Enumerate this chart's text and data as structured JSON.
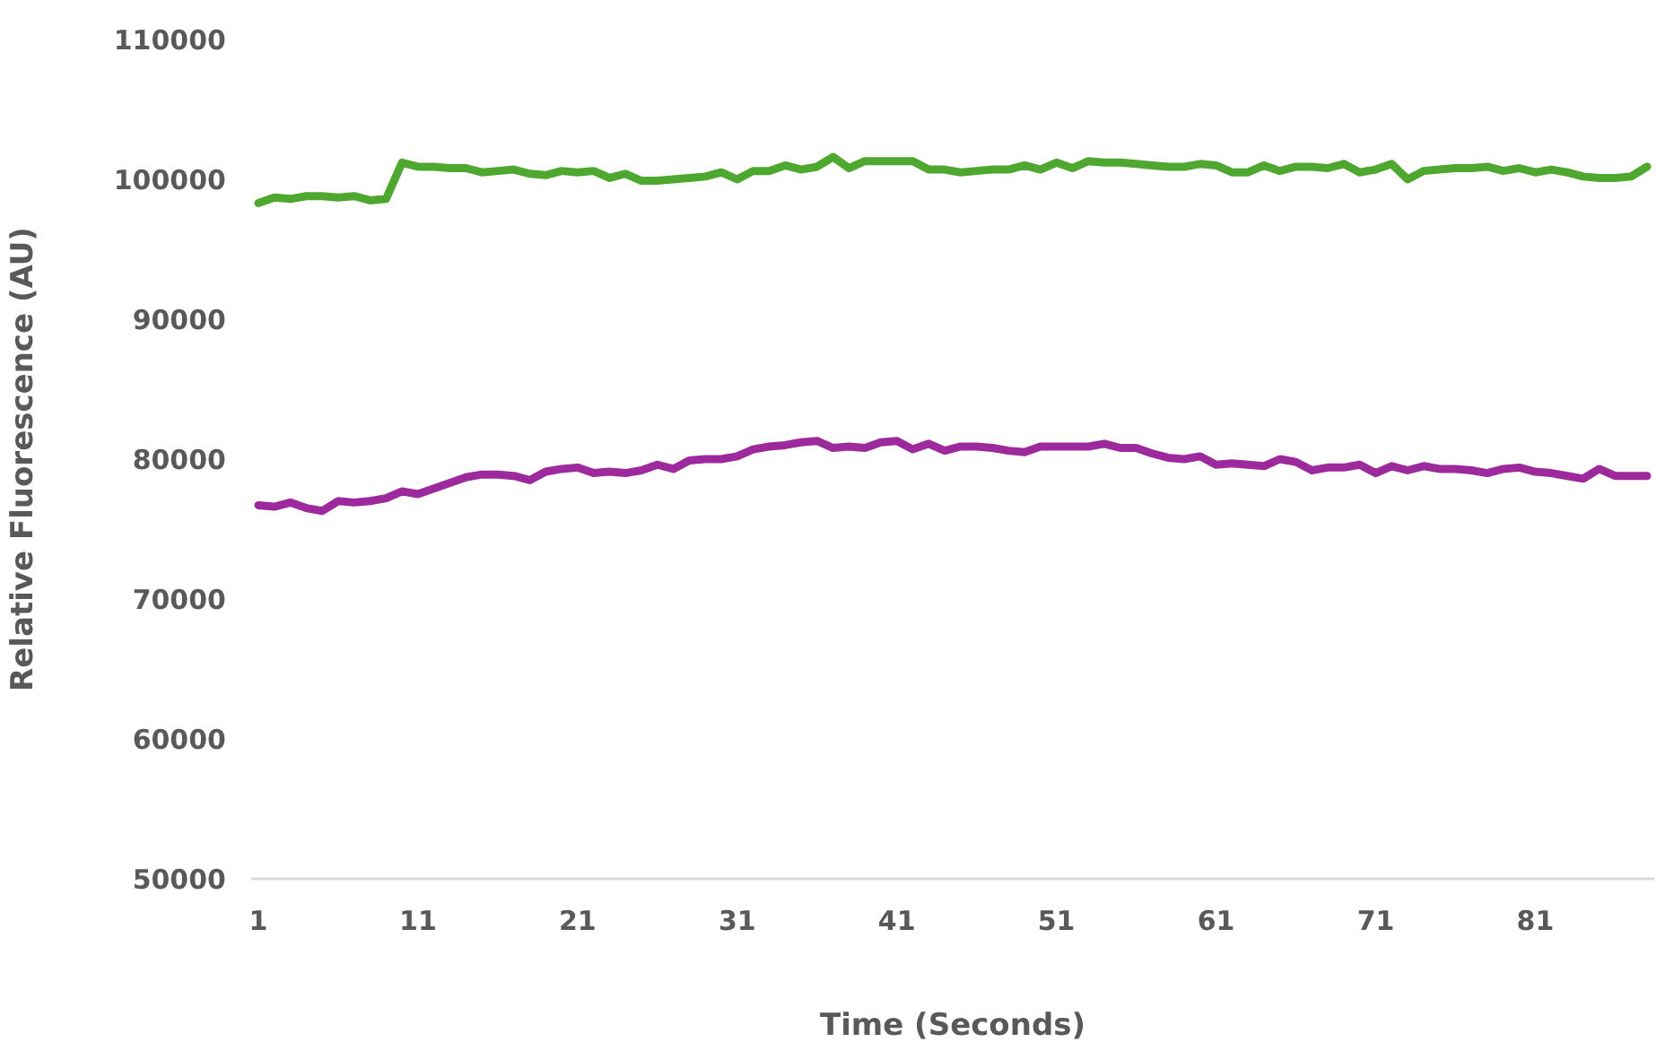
{
  "chart_data": {
    "type": "line",
    "xlabel": "Time (Seconds)",
    "ylabel": "Relative Fluorescence (AU)",
    "categories": [
      "1",
      null,
      null,
      null,
      null,
      null,
      null,
      null,
      null,
      null,
      "11",
      null,
      null,
      null,
      null,
      null,
      null,
      null,
      null,
      null,
      "21",
      null,
      null,
      null,
      null,
      null,
      null,
      null,
      null,
      null,
      "31",
      null,
      null,
      null,
      null,
      null,
      null,
      null,
      null,
      null,
      "41",
      null,
      null,
      null,
      null,
      null,
      null,
      null,
      null,
      null,
      "51",
      null,
      null,
      null,
      null,
      null,
      null,
      null,
      null,
      null,
      "61",
      null,
      null,
      null,
      null,
      null,
      null,
      null,
      null,
      null,
      "71",
      null,
      null,
      null,
      null,
      null,
      null,
      null,
      null,
      null,
      "81",
      null,
      null,
      null,
      null,
      null,
      null,
      null
    ],
    "ylim": [
      50000,
      110000
    ],
    "yticks": [
      50000,
      60000,
      70000,
      80000,
      90000,
      100000,
      110000
    ],
    "grid": false,
    "legend": false,
    "marker": "none",
    "line_style": "solid",
    "series": [
      {
        "color": "#4ea72e",
        "values": [
          98300,
          98700,
          98600,
          98800,
          98800,
          98700,
          98800,
          98500,
          98600,
          101200,
          100900,
          100900,
          100800,
          100800,
          100500,
          100600,
          100700,
          100400,
          100300,
          100600,
          100500,
          100600,
          100100,
          100400,
          99900,
          99900,
          100000,
          100100,
          100200,
          100500,
          100000,
          100600,
          100600,
          101000,
          100700,
          100900,
          101600,
          100800,
          101300,
          101300,
          101300,
          101300,
          100700,
          100700,
          100500,
          100600,
          100700,
          100700,
          101000,
          100700,
          101200,
          100800,
          101300,
          101200,
          101200,
          101100,
          101000,
          100900,
          100900,
          101100,
          101000,
          100500,
          100500,
          101000,
          100600,
          100900,
          100900,
          100800,
          101100,
          100500,
          100700,
          101100,
          100000,
          100600,
          100700,
          100800,
          100800,
          100900,
          100600,
          100800,
          100500,
          100700,
          100500,
          100200,
          100100,
          100100,
          100200,
          100900
        ]
      },
      {
        "color": "#9c2a9c",
        "values": [
          76700,
          76600,
          76900,
          76500,
          76300,
          77000,
          76900,
          77000,
          77200,
          77700,
          77500,
          77900,
          78300,
          78700,
          78900,
          78900,
          78800,
          78500,
          79100,
          79300,
          79400,
          79000,
          79100,
          79000,
          79200,
          79600,
          79300,
          79900,
          80000,
          80000,
          80200,
          80700,
          80900,
          81000,
          81200,
          81300,
          80800,
          80900,
          80800,
          81200,
          81300,
          80700,
          81100,
          80600,
          80900,
          80900,
          80800,
          80600,
          80500,
          80900,
          80900,
          80900,
          80900,
          81100,
          80800,
          80800,
          80400,
          80100,
          80000,
          80200,
          79600,
          79700,
          79600,
          79500,
          80000,
          79800,
          79200,
          79400,
          79400,
          79600,
          79000,
          79500,
          79200,
          79500,
          79300,
          79300,
          79200,
          79000,
          79300,
          79400,
          79100,
          79000,
          78800,
          78600,
          79300,
          78800,
          78800,
          78800
        ]
      }
    ]
  }
}
